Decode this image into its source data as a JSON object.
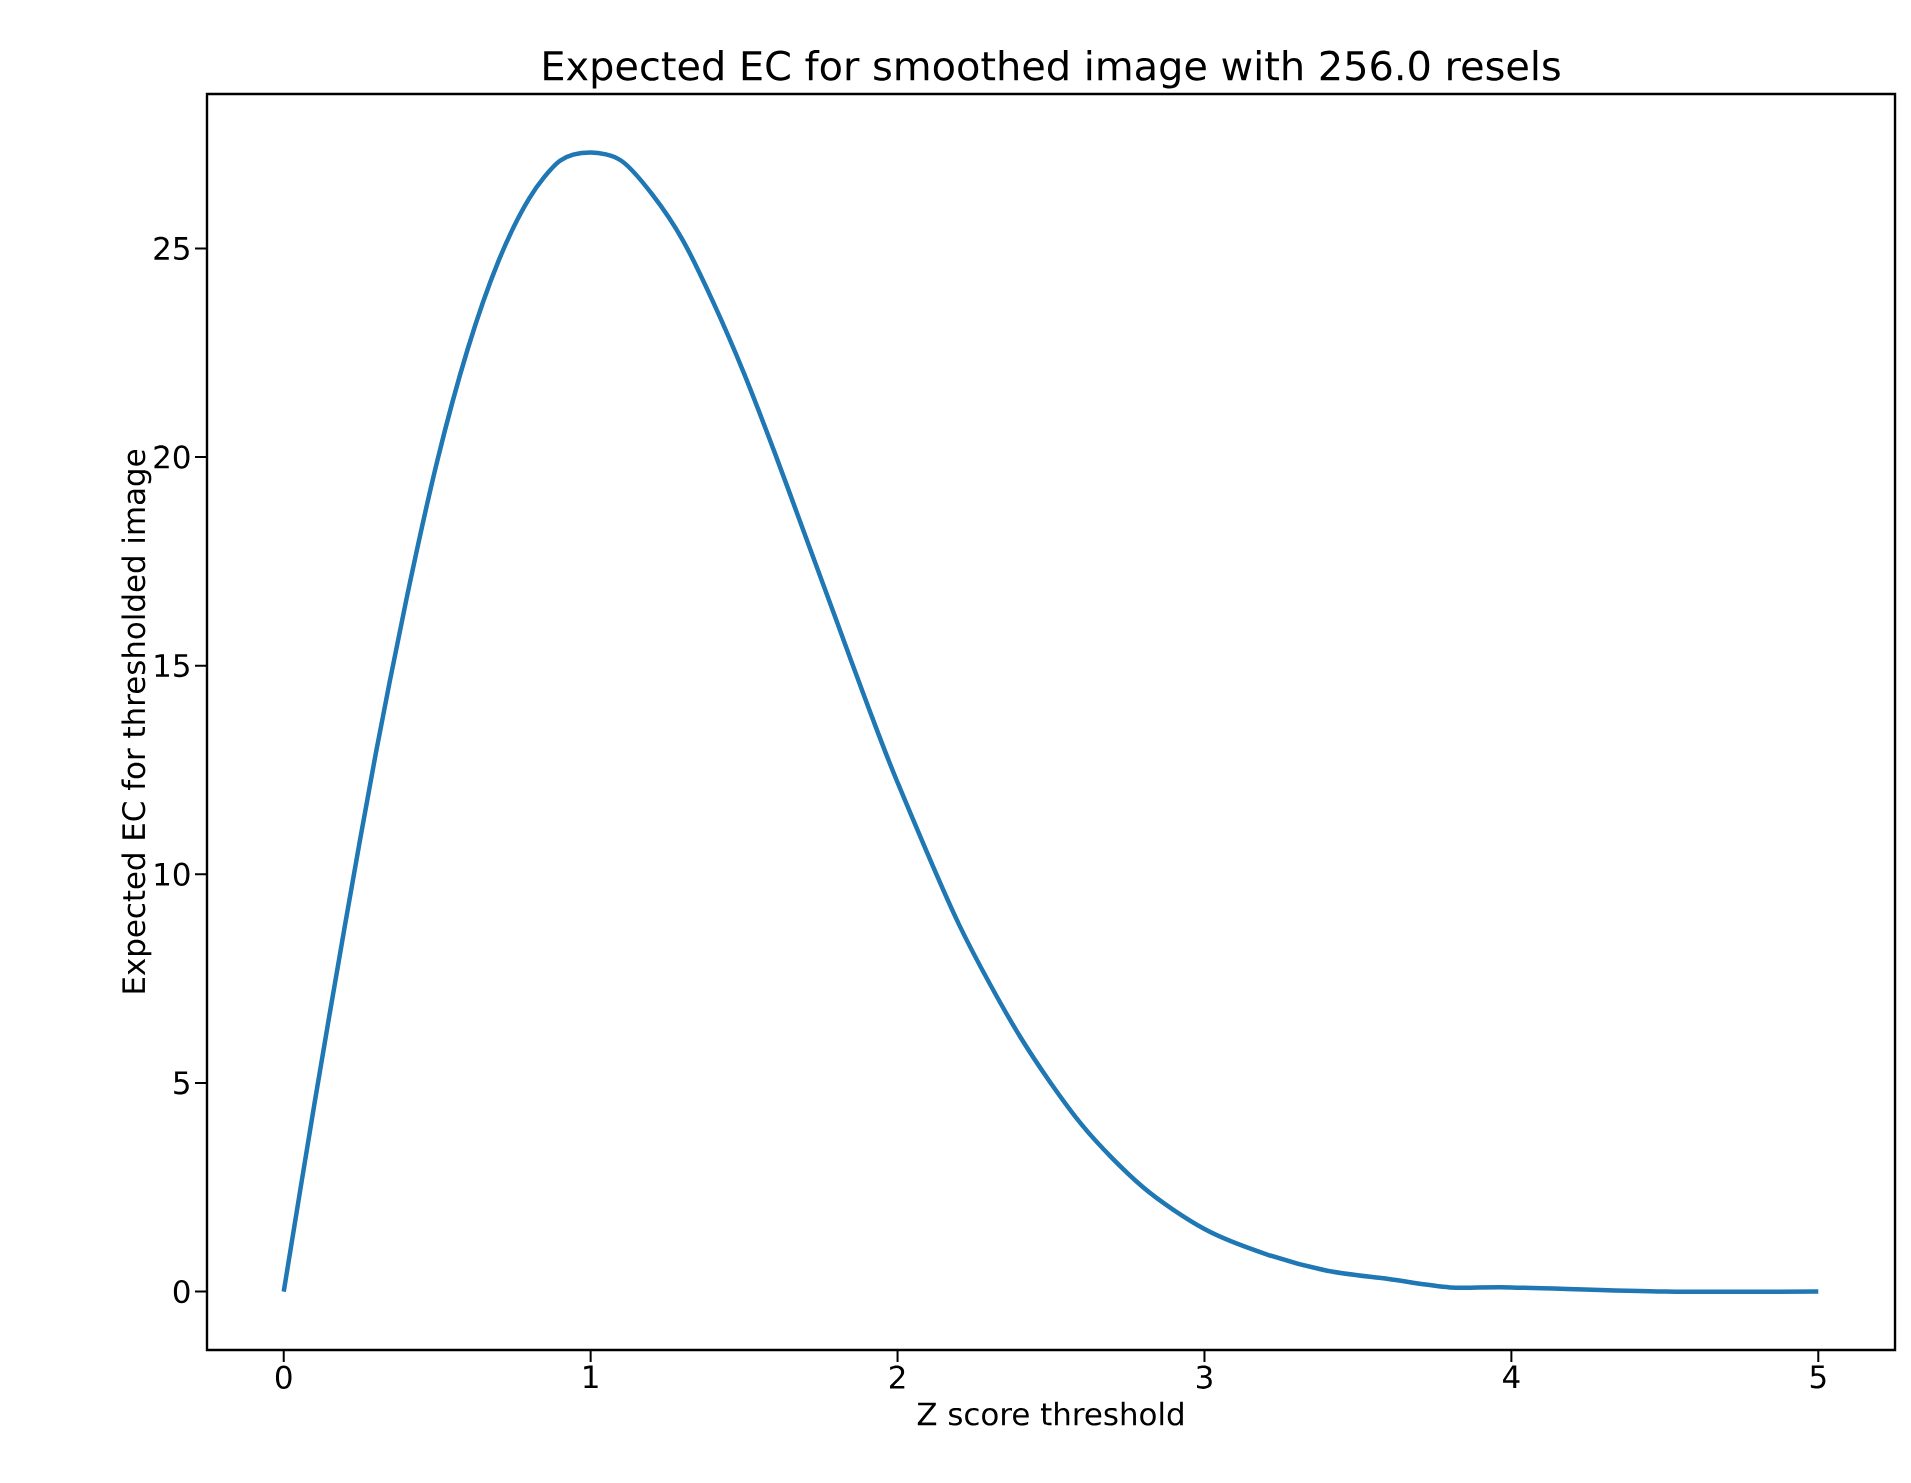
{
  "chart_data": {
    "type": "line",
    "title": "Expected EC for smoothed image with 256.0 resels",
    "xlabel": "Z score threshold",
    "ylabel": "Expected EC for thresholded image",
    "x": [
      0,
      0.1,
      0.2,
      0.3,
      0.4,
      0.5,
      0.6,
      0.7,
      0.8,
      0.9,
      1.0,
      1.1,
      1.2,
      1.3,
      1.4,
      1.5,
      1.6,
      1.7,
      1.8,
      1.9,
      2.0,
      2.2,
      2.4,
      2.6,
      2.8,
      3.0,
      3.2,
      3.4,
      3.6,
      3.8,
      4.0,
      4.5,
      5.0
    ],
    "series": [
      {
        "color": "#1f77b4",
        "values": [
          0,
          4.5,
          8.8,
          12.9,
          16.6,
          19.9,
          22.6,
          24.7,
          26.2,
          27.1,
          27.3,
          27.1,
          26.3,
          25.2,
          23.7,
          22.0,
          20.1,
          18.1,
          16.1,
          14.1,
          12.2,
          8.8,
          6.1,
          4.0,
          2.5,
          1.5,
          0.9,
          0.5,
          0.3,
          0.1,
          0.1,
          0.0,
          0.0
        ]
      }
    ],
    "xlim": [
      -0.25,
      5.25
    ],
    "ylim": [
      -1.4,
      28.7
    ],
    "xticks": [
      0,
      1,
      2,
      3,
      4,
      5
    ],
    "yticks": [
      0,
      5,
      10,
      15,
      20,
      25
    ],
    "grid": false,
    "marker": "none",
    "line_style": "solid"
  }
}
